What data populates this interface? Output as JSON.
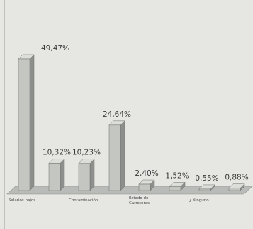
{
  "chart_data": {
    "type": "bar3d",
    "categories": [
      "Salarios bajos",
      null,
      "Contaminación",
      null,
      "Estado de Carreteras",
      null,
      "¿ Ninguno",
      null
    ],
    "values": [
      49.47,
      10.32,
      10.23,
      24.64,
      2.4,
      1.52,
      0.55,
      0.88
    ],
    "value_labels": [
      "49,47%",
      "10,32%",
      "10,23%",
      "24,64%",
      "2,40%",
      "1,52%",
      "0,55%",
      "0,88%"
    ],
    "color": "#c4c6c2"
  }
}
